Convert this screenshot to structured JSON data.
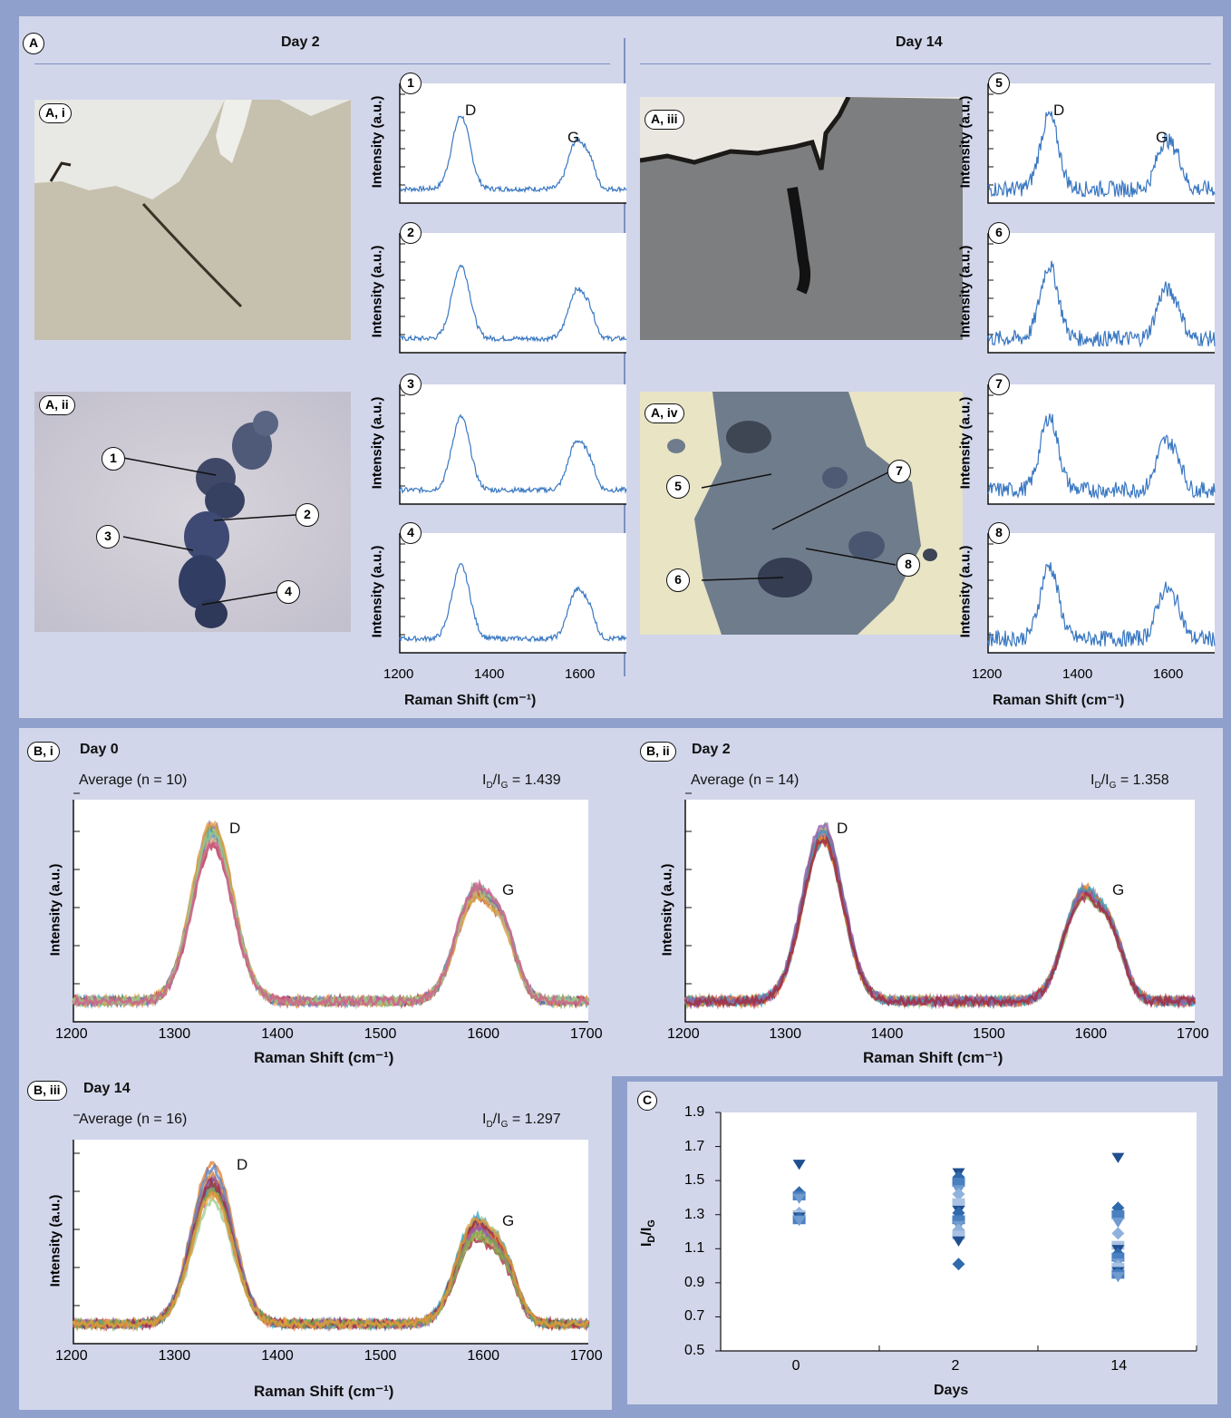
{
  "panel_a": {
    "label": "A",
    "day2_title": "Day 2",
    "day14_title": "Day 14",
    "photos": {
      "ai": "A, i",
      "aii": "A, ii",
      "aiii": "A, iii",
      "aiv": "A, iv"
    },
    "point_labels": [
      "1",
      "2",
      "3",
      "4",
      "5",
      "6",
      "7",
      "8"
    ],
    "spectra_ylabel": "Intensity (a.u.)",
    "spectra_xlabel": "Raman Shift (cm⁻¹)",
    "peak_d": "D",
    "peak_g": "G",
    "x_ticks": [
      "1200",
      "1400",
      "1600"
    ]
  },
  "panel_b": {
    "bi": {
      "label": "B, i",
      "title": "Day 0",
      "average": "Average (n = 10)",
      "ratio_prefix": "I",
      "ratio_sub_d": "D",
      "ratio_sub_g": "G",
      "ratio_value": " = 1.439"
    },
    "bii": {
      "label": "B, ii",
      "title": "Day 2",
      "average": "Average (n = 14)",
      "ratio_prefix": "I",
      "ratio_sub_d": "D",
      "ratio_sub_g": "G",
      "ratio_value": " = 1.358"
    },
    "biii": {
      "label": "B, iii",
      "title": "Day 14",
      "average": "Average (n = 16)",
      "ratio_prefix": "I",
      "ratio_sub_d": "D",
      "ratio_sub_g": "G",
      "ratio_value": " = 1.297"
    },
    "ylabel": "Intensity (a.u.)",
    "xlabel": "Raman Shift (cm⁻¹)",
    "x_ticks": [
      "1200",
      "1300",
      "1400",
      "1500",
      "1600",
      "1700"
    ],
    "peak_d": "D",
    "peak_g": "G"
  },
  "panel_c": {
    "label": "C",
    "xlabel": "Days",
    "ylabel_main": "I",
    "ylabel_sub_d": "D",
    "ylabel_sub_g": "G",
    "y_ticks": [
      "1.9",
      "1.7",
      "1.5",
      "1.3",
      "1.1",
      "0.9",
      "0.7",
      "0.5"
    ],
    "x_ticks": [
      "0",
      "2",
      "14"
    ]
  },
  "chart_data": [
    {
      "type": "scatter",
      "title": "",
      "xlabel": "Days",
      "ylabel": "ID/IG",
      "categories": [
        "0",
        "2",
        "14"
      ],
      "ylim": [
        0.5,
        1.9
      ],
      "series": [
        {
          "category": "0",
          "values": [
            1.6,
            1.43,
            1.41,
            1.4,
            1.31,
            1.3,
            1.29,
            1.28,
            1.27,
            1.27
          ]
        },
        {
          "category": "2",
          "values": [
            1.55,
            1.52,
            1.49,
            1.45,
            1.42,
            1.37,
            1.33,
            1.31,
            1.27,
            1.24,
            1.21,
            1.18,
            1.15,
            1.01
          ]
        },
        {
          "category": "14",
          "values": [
            1.64,
            1.34,
            1.3,
            1.26,
            1.19,
            1.12,
            1.1,
            1.07,
            1.05,
            1.02,
            1.0,
            0.99,
            0.97,
            0.96,
            0.95,
            0.94
          ]
        }
      ]
    },
    {
      "type": "line",
      "title": "Day 0",
      "xlabel": "Raman Shift (cm⁻¹)",
      "ylabel": "Intensity (a.u.)",
      "xlim": [
        1200,
        1700
      ],
      "peaks": [
        {
          "label": "D",
          "x": 1335
        },
        {
          "label": "G",
          "x": 1590
        }
      ],
      "ratio": 1.439
    },
    {
      "type": "line",
      "title": "Day 2",
      "xlabel": "Raman Shift (cm⁻¹)",
      "ylabel": "Intensity (a.u.)",
      "xlim": [
        1200,
        1700
      ],
      "peaks": [
        {
          "label": "D",
          "x": 1338
        },
        {
          "label": "G",
          "x": 1588
        }
      ],
      "ratio": 1.358
    },
    {
      "type": "line",
      "title": "Day 14",
      "xlabel": "Raman Shift (cm⁻¹)",
      "ylabel": "Intensity (a.u.)",
      "xlim": [
        1200,
        1700
      ],
      "peaks": [
        {
          "label": "D",
          "x": 1333
        },
        {
          "label": "G",
          "x": 1587
        }
      ],
      "ratio": 1.297
    }
  ],
  "colors": {
    "frame": "#8fa0cc",
    "panel": "#d1d6ea",
    "spectrum": "#3a78c2",
    "marker": "#2f5f9e"
  }
}
